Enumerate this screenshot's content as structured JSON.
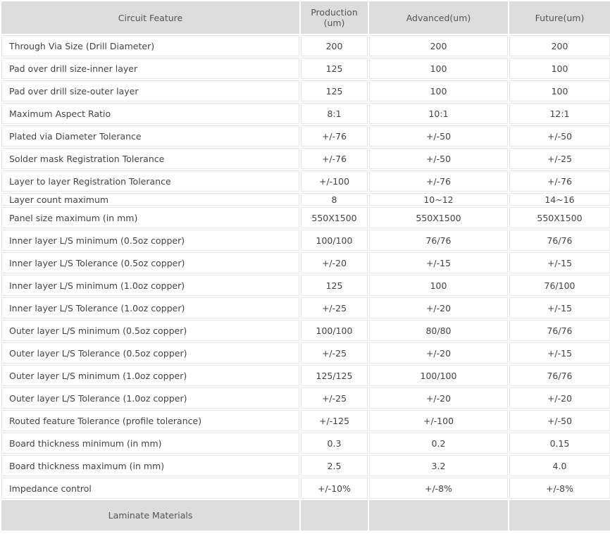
{
  "table": {
    "headers": [
      "Circuit Feature",
      "Production\n(um)",
      "Advanced(um)",
      "Future(um)"
    ],
    "rows": [
      [
        "Through Via Size (Drill Diameter)",
        "200",
        "200",
        "200"
      ],
      [
        "Pad over drill size-inner layer",
        "125",
        "100",
        "100"
      ],
      [
        "Pad over drill size-outer layer",
        "125",
        "100",
        "100"
      ],
      [
        "Maximum Aspect Ratio",
        "8:1",
        "10:1",
        "12:1"
      ],
      [
        "Plated via Diameter Tolerance",
        "+/-76",
        "+/-50",
        "+/-50"
      ],
      [
        "Solder mask Registration Tolerance",
        "+/-76",
        "+/-50",
        "+/-25"
      ],
      [
        "Layer to layer Registration Tolerance",
        "+/-100",
        "+/-76",
        "+/-76"
      ],
      [
        "Layer count maximum",
        "8",
        "10~12",
        "14~16"
      ],
      [
        "Panel size maximum (in mm)",
        "550X1500",
        "550X1500",
        "550X1500"
      ],
      [
        "Inner layer L/S minimum (0.5oz copper)",
        "100/100",
        "76/76",
        "76/76"
      ],
      [
        "Inner layer L/S Tolerance (0.5oz copper)",
        "+/-20",
        "+/-15",
        "+/-15"
      ],
      [
        "Inner layer L/S minimum (1.0oz copper)",
        "125",
        "100",
        "76/100"
      ],
      [
        "Inner layer L/S Tolerance (1.0oz copper)",
        "+/-25",
        "+/-20",
        "+/-15"
      ],
      [
        "Outer layer L/S minimum (0.5oz copper)",
        "100/100",
        "80/80",
        "76/76"
      ],
      [
        "Outer layer L/S Tolerance (0.5oz copper)",
        "+/-25",
        "+/-20",
        "+/-15"
      ],
      [
        "Outer layer L/S minimum (1.0oz copper)",
        "125/125",
        "100/100",
        "76/76"
      ],
      [
        "Outer layer L/S Tolerance (1.0oz copper)",
        "+/-25",
        "+/-20",
        "+/-20"
      ],
      [
        "Routed feature Tolerance (profile tolerance)",
        "+/-125",
        "+/-100",
        "+/-50"
      ],
      [
        "Board thickness minimum (in mm)",
        "0.3",
        "0.2",
        "0.15"
      ],
      [
        "Board thickness maximum (in mm)",
        "2.5",
        "3.2",
        "4.0"
      ],
      [
        "Impedance control",
        "+/-10%",
        "+/-8%",
        "+/-8%"
      ]
    ],
    "section_row": [
      "Laminate Materials",
      "",
      "",
      ""
    ]
  }
}
